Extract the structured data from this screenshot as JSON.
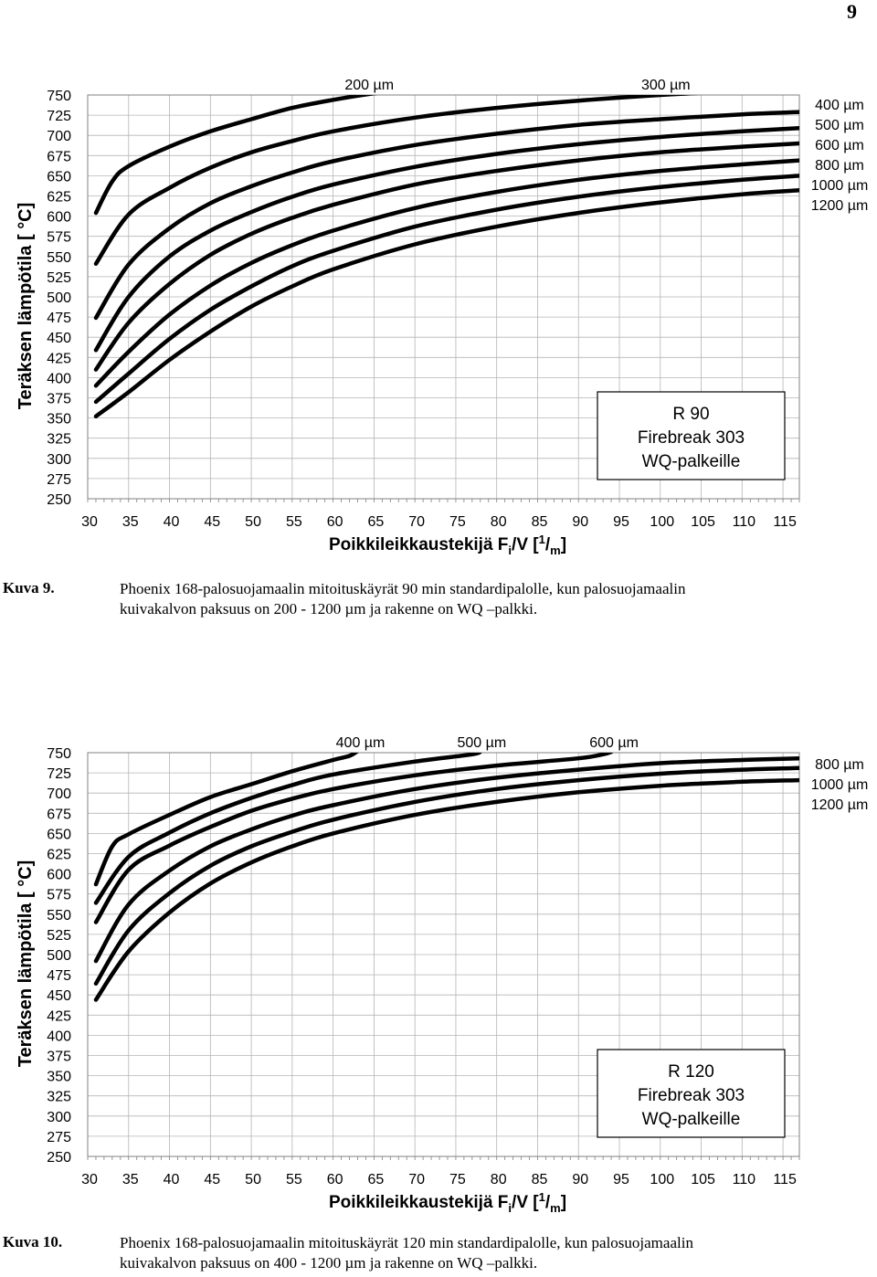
{
  "page_number": "9",
  "figures": [
    {
      "caption_label": "Kuva 9.",
      "caption_line1": "Phoenix 168-palosuojamaalin mitoituskäyrät 90 min standardipalolle, kun  palosuojamaalin",
      "caption_line2": "kuivakalvon paksuus on 200 - 1200 µm ja rakenne on WQ –palkki."
    },
    {
      "caption_label": "Kuva 10.",
      "caption_line1": "Phoenix 168-palosuojamaalin mitoituskäyrät 120 min standardipalolle, kun  palosuojamaalin",
      "caption_line2": "kuivakalvon paksuus on 400 - 1200 µm ja rakenne on WQ –palkki."
    }
  ],
  "chart_data": [
    {
      "type": "line",
      "ylabel": "Teräksen lämpötila [ °C]",
      "xlabel": "Poikkileikkaustekijä F",
      "xlabel_sub": "i",
      "xlabel_mid": "/V [",
      "xlabel_sup": "1",
      "xlabel_slash": "/",
      "xlabel_sub2": "m",
      "xlabel_end": "]",
      "xlim": [
        30,
        117
      ],
      "ylim": [
        250,
        750
      ],
      "xticks": [
        30,
        35,
        40,
        45,
        50,
        55,
        60,
        65,
        70,
        75,
        80,
        85,
        90,
        95,
        100,
        105,
        110,
        115
      ],
      "yticks": [
        250,
        275,
        300,
        325,
        350,
        375,
        400,
        425,
        450,
        475,
        500,
        525,
        550,
        575,
        600,
        625,
        650,
        675,
        700,
        725,
        750
      ],
      "grid": true,
      "legend_box": [
        "R 90",
        "Firebreak 303",
        "WQ-palkeille"
      ],
      "series": [
        {
          "name": "200 µm",
          "points": [
            [
              31,
              604
            ],
            [
              33,
              643
            ],
            [
              35,
              662
            ],
            [
              40,
              686
            ],
            [
              45,
              705
            ],
            [
              50,
              720
            ],
            [
              55,
              734
            ],
            [
              60,
              744
            ],
            [
              65,
              752
            ],
            [
              70,
              758
            ],
            [
              75,
              763
            ]
          ],
          "label_pos": "top"
        },
        {
          "name": "300 µm",
          "points": [
            [
              31,
              541
            ],
            [
              35,
              602
            ],
            [
              40,
              635
            ],
            [
              45,
              660
            ],
            [
              50,
              679
            ],
            [
              55,
              693
            ],
            [
              60,
              705
            ],
            [
              70,
              722
            ],
            [
              80,
              734
            ],
            [
              90,
              743
            ],
            [
              100,
              750
            ],
            [
              110,
              755
            ]
          ],
          "label_pos": "top"
        },
        {
          "name": "400 µm",
          "points": [
            [
              31,
              474
            ],
            [
              35,
              540
            ],
            [
              40,
              585
            ],
            [
              45,
              616
            ],
            [
              50,
              637
            ],
            [
              55,
              654
            ],
            [
              60,
              668
            ],
            [
              70,
              688
            ],
            [
              80,
              702
            ],
            [
              90,
              713
            ],
            [
              100,
              720
            ],
            [
              110,
              726
            ],
            [
              117,
              729
            ]
          ],
          "label_pos": "right"
        },
        {
          "name": "500 µm",
          "points": [
            [
              31,
              434
            ],
            [
              35,
              500
            ],
            [
              40,
              550
            ],
            [
              45,
              582
            ],
            [
              50,
              605
            ],
            [
              55,
              624
            ],
            [
              60,
              639
            ],
            [
              70,
              661
            ],
            [
              80,
              677
            ],
            [
              90,
              689
            ],
            [
              100,
              698
            ],
            [
              110,
              705
            ],
            [
              117,
              709
            ]
          ],
          "label_pos": "right"
        },
        {
          "name": "600 µm",
          "points": [
            [
              31,
              410
            ],
            [
              35,
              468
            ],
            [
              40,
              516
            ],
            [
              45,
              552
            ],
            [
              50,
              578
            ],
            [
              55,
              598
            ],
            [
              60,
              614
            ],
            [
              70,
              639
            ],
            [
              80,
              656
            ],
            [
              90,
              669
            ],
            [
              100,
              679
            ],
            [
              110,
              686
            ],
            [
              117,
              690
            ]
          ],
          "label_pos": "right"
        },
        {
          "name": "800 µm",
          "points": [
            [
              31,
              390
            ],
            [
              35,
              432
            ],
            [
              40,
              478
            ],
            [
              45,
              514
            ],
            [
              50,
              542
            ],
            [
              55,
              564
            ],
            [
              60,
              582
            ],
            [
              70,
              610
            ],
            [
              80,
              630
            ],
            [
              90,
              645
            ],
            [
              100,
              656
            ],
            [
              110,
              664
            ],
            [
              117,
              669
            ]
          ],
          "label_pos": "right"
        },
        {
          "name": "1000 µm",
          "points": [
            [
              31,
              370
            ],
            [
              35,
              405
            ],
            [
              40,
              448
            ],
            [
              45,
              484
            ],
            [
              50,
              513
            ],
            [
              55,
              538
            ],
            [
              60,
              557
            ],
            [
              70,
              587
            ],
            [
              80,
              608
            ],
            [
              90,
              624
            ],
            [
              100,
              636
            ],
            [
              110,
              645
            ],
            [
              117,
              650
            ]
          ],
          "label_pos": "right"
        },
        {
          "name": "1200 µm",
          "points": [
            [
              31,
              352
            ],
            [
              35,
              382
            ],
            [
              40,
              422
            ],
            [
              45,
              457
            ],
            [
              50,
              488
            ],
            [
              55,
              513
            ],
            [
              60,
              534
            ],
            [
              70,
              565
            ],
            [
              80,
              587
            ],
            [
              90,
              604
            ],
            [
              100,
              617
            ],
            [
              110,
              627
            ],
            [
              117,
              632
            ]
          ],
          "label_pos": "right"
        }
      ]
    },
    {
      "type": "line",
      "ylabel": "Teräksen lämpötila [ °C]",
      "xlabel": "Poikkileikkaustekijä F",
      "xlabel_sub": "i",
      "xlabel_mid": "/V [",
      "xlabel_sup": "1",
      "xlabel_slash": "/",
      "xlabel_sub2": "m",
      "xlabel_end": "]",
      "xlim": [
        30,
        117
      ],
      "ylim": [
        250,
        750
      ],
      "xticks": [
        30,
        35,
        40,
        45,
        50,
        55,
        60,
        65,
        70,
        75,
        80,
        85,
        90,
        95,
        100,
        105,
        110,
        115
      ],
      "yticks": [
        250,
        275,
        300,
        325,
        350,
        375,
        400,
        425,
        450,
        475,
        500,
        525,
        550,
        575,
        600,
        625,
        650,
        675,
        700,
        725,
        750
      ],
      "grid": true,
      "legend_box": [
        "R 120",
        "Firebreak 303",
        "WQ-palkeille"
      ],
      "series": [
        {
          "name": "400 µm",
          "points": [
            [
              31,
              587
            ],
            [
              33,
              634
            ],
            [
              35,
              649
            ],
            [
              40,
              673
            ],
            [
              45,
              695
            ],
            [
              50,
              711
            ],
            [
              55,
              727
            ],
            [
              60,
              741
            ],
            [
              62,
              746
            ],
            [
              63,
              752
            ]
          ],
          "label_pos": "top"
        },
        {
          "name": "500 µm",
          "points": [
            [
              31,
              564
            ],
            [
              35,
              621
            ],
            [
              40,
              651
            ],
            [
              45,
              675
            ],
            [
              50,
              694
            ],
            [
              55,
              710
            ],
            [
              60,
              723
            ],
            [
              70,
              739
            ],
            [
              77,
              748
            ],
            [
              78,
              752
            ]
          ],
          "label_pos": "top"
        },
        {
          "name": "600 µm",
          "points": [
            [
              31,
              540
            ],
            [
              35,
              605
            ],
            [
              40,
              635
            ],
            [
              45,
              658
            ],
            [
              50,
              678
            ],
            [
              55,
              693
            ],
            [
              60,
              705
            ],
            [
              70,
              722
            ],
            [
              80,
              734
            ],
            [
              90,
              743
            ],
            [
              93,
              748
            ],
            [
              94,
              751
            ]
          ],
          "label_pos": "top"
        },
        {
          "name": "800 µm",
          "points": [
            [
              31,
              492
            ],
            [
              35,
              562
            ],
            [
              40,
              604
            ],
            [
              45,
              634
            ],
            [
              50,
              655
            ],
            [
              55,
              672
            ],
            [
              60,
              685
            ],
            [
              70,
              705
            ],
            [
              80,
              719
            ],
            [
              90,
              729
            ],
            [
              100,
              737
            ],
            [
              110,
              741
            ],
            [
              117,
              743
            ]
          ],
          "label_pos": "right"
        },
        {
          "name": "1000 µm",
          "points": [
            [
              31,
              464
            ],
            [
              35,
              530
            ],
            [
              40,
              576
            ],
            [
              45,
              610
            ],
            [
              50,
              634
            ],
            [
              55,
              652
            ],
            [
              60,
              667
            ],
            [
              70,
              689
            ],
            [
              80,
              705
            ],
            [
              90,
              716
            ],
            [
              100,
              724
            ],
            [
              110,
              729
            ],
            [
              117,
              731
            ]
          ],
          "label_pos": "right"
        },
        {
          "name": "1200 µm",
          "points": [
            [
              31,
              444
            ],
            [
              35,
              504
            ],
            [
              40,
              552
            ],
            [
              45,
              588
            ],
            [
              50,
              614
            ],
            [
              55,
              634
            ],
            [
              60,
              650
            ],
            [
              70,
              673
            ],
            [
              80,
              689
            ],
            [
              90,
              701
            ],
            [
              100,
              709
            ],
            [
              110,
              714
            ],
            [
              117,
              716
            ]
          ],
          "label_pos": "right"
        }
      ]
    }
  ]
}
